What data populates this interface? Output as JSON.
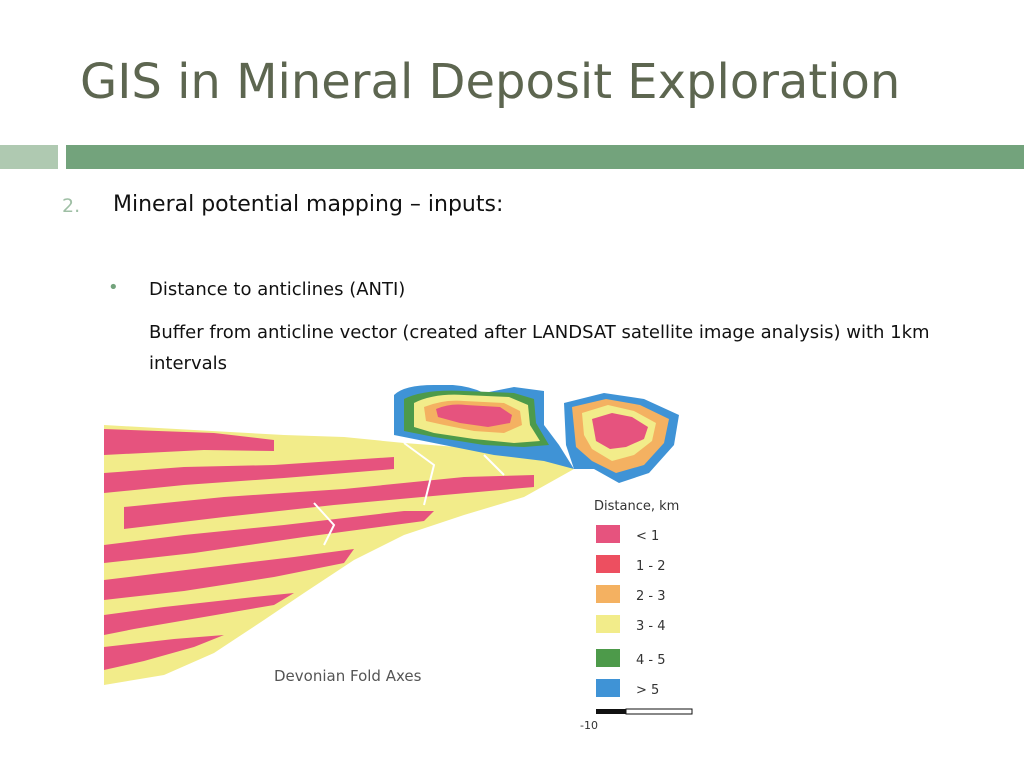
{
  "slide": {
    "title": "GIS in Mineral Deposit Exploration",
    "item_number": "2.",
    "heading": "Mineral potential mapping – inputs:",
    "bullet": "•",
    "bullet_title": "Distance to anticlines (ANTI)",
    "bullet_text": "Buffer from anticline vector (created after LANDSAT satellite image analysis) with 1km intervals"
  },
  "map": {
    "caption": "Devonian Fold Axes",
    "legend_title": "Distance, km",
    "legend": [
      {
        "label": "< 1",
        "color": "#e6537e"
      },
      {
        "label": "1 - 2",
        "color": "#ed4f60"
      },
      {
        "label": "2 - 3",
        "color": "#f4b161"
      },
      {
        "label": "3 - 4",
        "color": "#f2ec8a"
      },
      {
        "label": "4 - 5",
        "color": "#4d9a4a"
      },
      {
        "label": "> 5",
        "color": "#3f93d6"
      }
    ],
    "scale_label": "-10"
  },
  "colors": {
    "title": "#5d6650",
    "rule_light": "#afc9b1",
    "rule_main": "#73a37c",
    "number": "#9fbfa5"
  }
}
